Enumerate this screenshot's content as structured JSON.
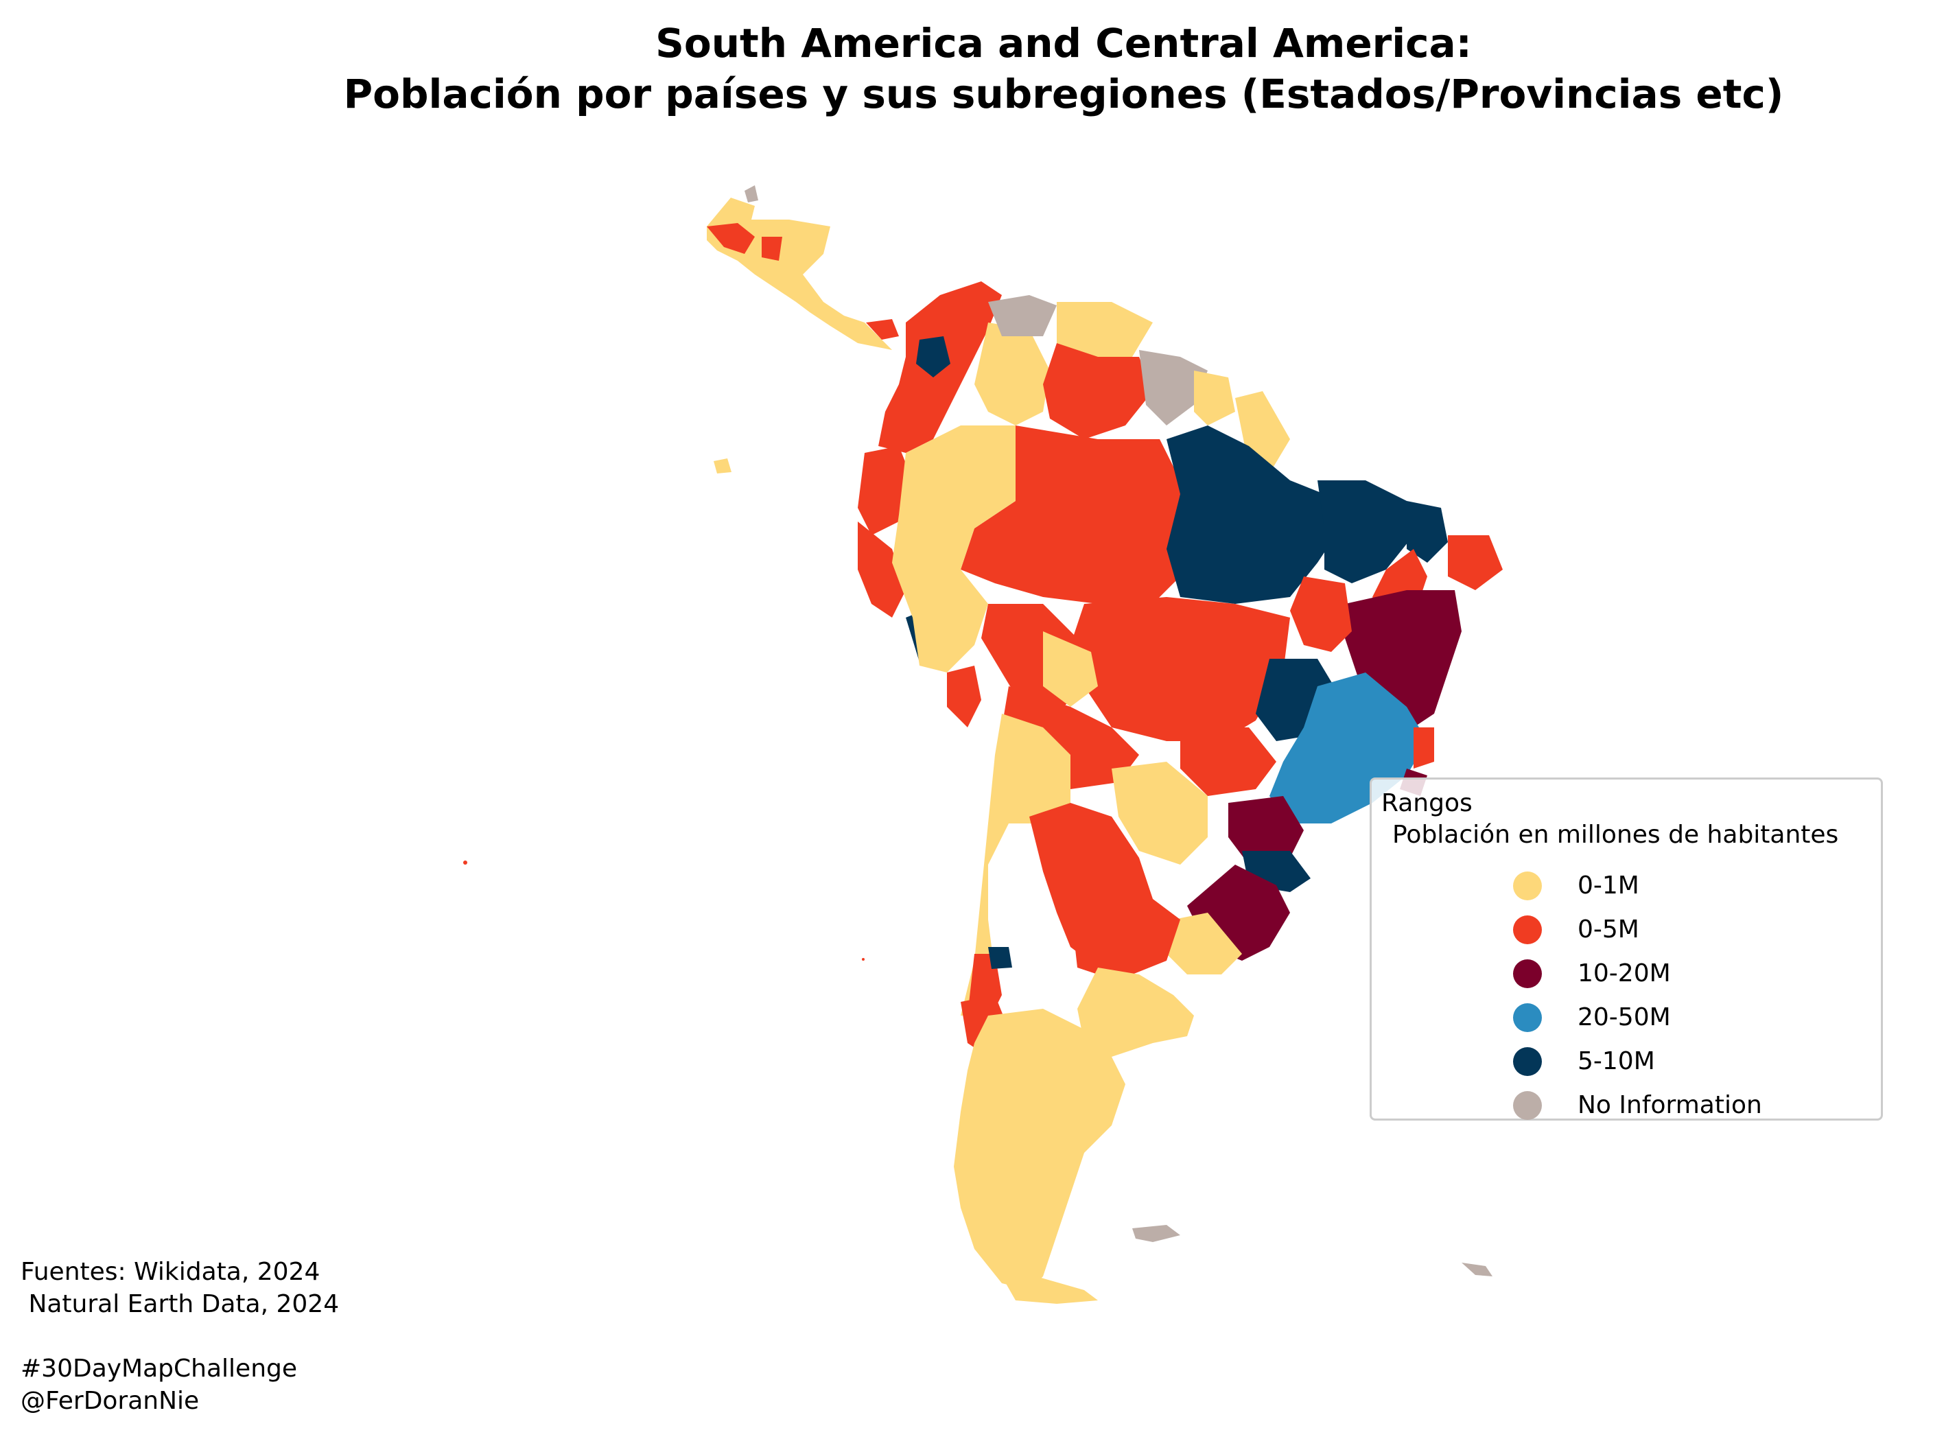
{
  "title": {
    "line1": "South America and Central America:",
    "line2": "Población por países y sus subregiones (Estados/Provincias etc)"
  },
  "legend": {
    "title": "Rangos",
    "subtitle": "Población en millones de habitantes",
    "items": [
      {
        "label": "0-1M",
        "color": "#fdd87a"
      },
      {
        "label": "0-5M",
        "color": "#f03c22"
      },
      {
        "label": "10-20M",
        "color": "#7b002b"
      },
      {
        "label": "20-50M",
        "color": "#2b8cc0"
      },
      {
        "label": "5-10M",
        "color": "#033658"
      },
      {
        "label": "No Information",
        "color": "#bcaea8"
      }
    ]
  },
  "credits": {
    "line1": "Fuentes: Wikidata, 2024",
    "line2": " Natural Earth Data, 2024",
    "line3": "#30DayMapChallenge",
    "line4": "@FerDoranNie"
  }
}
